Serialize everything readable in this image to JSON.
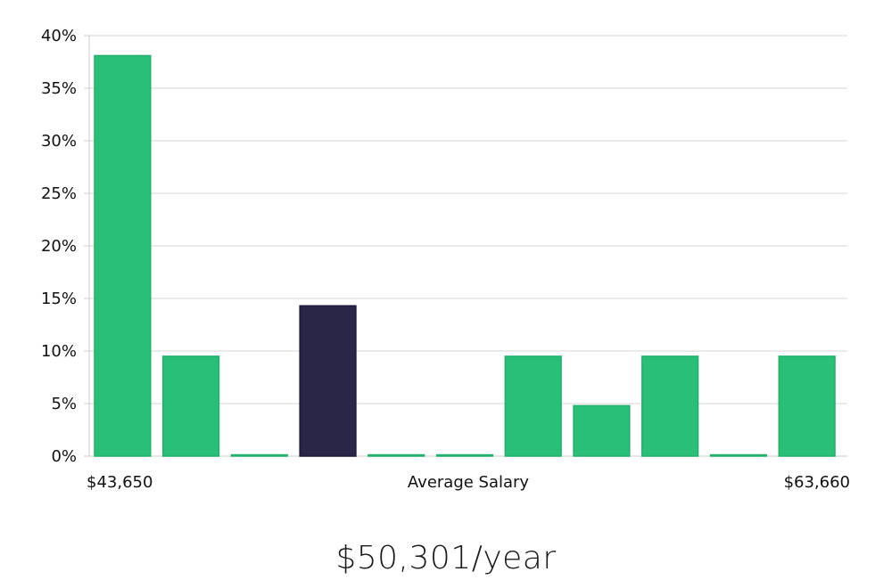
{
  "headline": "$50,301/year",
  "colors": {
    "bar": "#29bf79",
    "bar_stroke": "#22b06c",
    "highlight": "#2a2647",
    "highlight_stroke": "#1c1838",
    "grid": "#e3e3e3",
    "axis": "#cccccc"
  },
  "chart_data": {
    "type": "bar",
    "xlabel": "Average Salary",
    "x_min_label": "$43,650",
    "x_max_label": "$63,660",
    "values": [
      38.1,
      9.5,
      0,
      14.3,
      0,
      0,
      9.5,
      4.8,
      9.5,
      0,
      9.5
    ],
    "highlight_index": 3,
    "ylim": [
      0,
      40
    ],
    "yticks": [
      {
        "value": 0,
        "label": "0%"
      },
      {
        "value": 5,
        "label": "5%"
      },
      {
        "value": 10,
        "label": "10%"
      },
      {
        "value": 15,
        "label": "15%"
      },
      {
        "value": 20,
        "label": "20%"
      },
      {
        "value": 25,
        "label": "25%"
      },
      {
        "value": 30,
        "label": "30%"
      },
      {
        "value": 35,
        "label": "35%"
      },
      {
        "value": 40,
        "label": "40%"
      }
    ],
    "grid": true
  }
}
